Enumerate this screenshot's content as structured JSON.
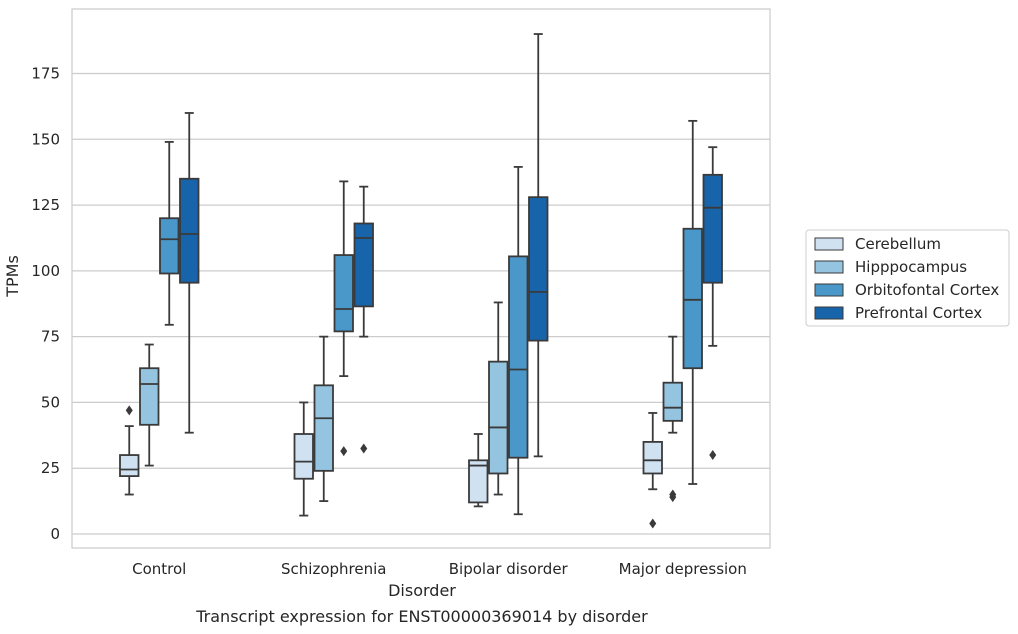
{
  "chart_data": {
    "type": "box",
    "caption": "Transcript expression for ENST00000369014 by disorder",
    "xlabel": "Disorder",
    "ylabel": "TPMs",
    "ylim": [
      -5,
      200
    ],
    "yticks": [
      0,
      25,
      50,
      75,
      100,
      125,
      150,
      175
    ],
    "grid": "horizontal",
    "legend_position": "right",
    "categories": [
      "Control",
      "Schizophrenia",
      "Bipolar disorder",
      "Major depression"
    ],
    "series": [
      {
        "name": "Cerebellum",
        "color": "#d0e1f2",
        "boxes": [
          {
            "whisker_low": 15,
            "q1": 22,
            "median": 24.5,
            "q3": 30,
            "whisker_high": 41,
            "outliers": [
              47
            ]
          },
          {
            "whisker_low": 7,
            "q1": 21,
            "median": 27.5,
            "q3": 38,
            "whisker_high": 50,
            "outliers": []
          },
          {
            "whisker_low": 10.5,
            "q1": 12,
            "median": 26,
            "q3": 28,
            "whisker_high": 38,
            "outliers": []
          },
          {
            "whisker_low": 17,
            "q1": 23,
            "median": 28,
            "q3": 35,
            "whisker_high": 46,
            "outliers": [
              4
            ]
          }
        ]
      },
      {
        "name": "Hipppocampus",
        "color": "#94c4df",
        "boxes": [
          {
            "whisker_low": 26,
            "q1": 41.5,
            "median": 57,
            "q3": 63,
            "whisker_high": 72,
            "outliers": []
          },
          {
            "whisker_low": 12.5,
            "q1": 24,
            "median": 44,
            "q3": 56.5,
            "whisker_high": 75,
            "outliers": []
          },
          {
            "whisker_low": 15,
            "q1": 23,
            "median": 40.5,
            "q3": 65.5,
            "whisker_high": 88,
            "outliers": []
          },
          {
            "whisker_low": 38.5,
            "q1": 43,
            "median": 48,
            "q3": 57.5,
            "whisker_high": 75,
            "outliers": [
              14,
              15
            ]
          }
        ]
      },
      {
        "name": "Orbitofontal Cortex",
        "color": "#4a98c9",
        "boxes": [
          {
            "whisker_low": 79.5,
            "q1": 99,
            "median": 112,
            "q3": 120,
            "whisker_high": 149,
            "outliers": []
          },
          {
            "whisker_low": 60,
            "q1": 77,
            "median": 85.5,
            "q3": 106,
            "whisker_high": 134,
            "outliers": [
              31.5
            ]
          },
          {
            "whisker_low": 7.5,
            "q1": 29,
            "median": 62.5,
            "q3": 105.5,
            "whisker_high": 139.5,
            "outliers": []
          },
          {
            "whisker_low": 19,
            "q1": 63,
            "median": 89,
            "q3": 116,
            "whisker_high": 157,
            "outliers": []
          }
        ]
      },
      {
        "name": "Prefrontal Cortex",
        "color": "#1764ab",
        "boxes": [
          {
            "whisker_low": 38.5,
            "q1": 95.5,
            "median": 114,
            "q3": 135,
            "whisker_high": 160,
            "outliers": []
          },
          {
            "whisker_low": 75,
            "q1": 86.5,
            "median": 112.5,
            "q3": 118,
            "whisker_high": 132,
            "outliers": [
              32.5
            ]
          },
          {
            "whisker_low": 29.5,
            "q1": 73.5,
            "median": 92,
            "q3": 128,
            "whisker_high": 190,
            "outliers": []
          },
          {
            "whisker_low": 71.5,
            "q1": 95.5,
            "median": 124,
            "q3": 136.5,
            "whisker_high": 147,
            "outliers": [
              30
            ]
          }
        ]
      }
    ]
  }
}
